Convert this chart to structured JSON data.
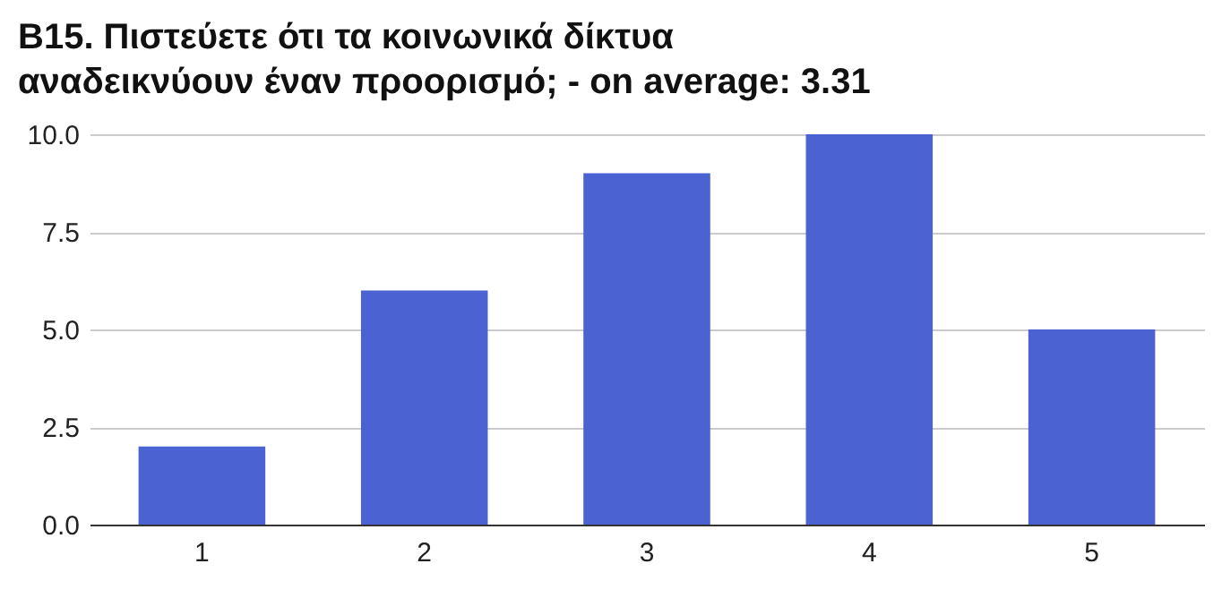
{
  "chart_data": {
    "type": "bar",
    "title": "B15. Πιστεύετε ότι τα κοινωνικά δίκτυα αναδεικνύουν έναν προορισμό; - on average: 3.31",
    "categories": [
      "1",
      "2",
      "3",
      "4",
      "5"
    ],
    "values": [
      2,
      6,
      9,
      10,
      5
    ],
    "color": "#4a62d2",
    "ylim": [
      0,
      10
    ],
    "yticks": [
      {
        "value": 0,
        "label": "0.0"
      },
      2.5,
      {
        "value": 5,
        "label": "5.0"
      },
      7.5,
      {
        "value": 10,
        "label": "10.0"
      }
    ],
    "grid": true
  }
}
